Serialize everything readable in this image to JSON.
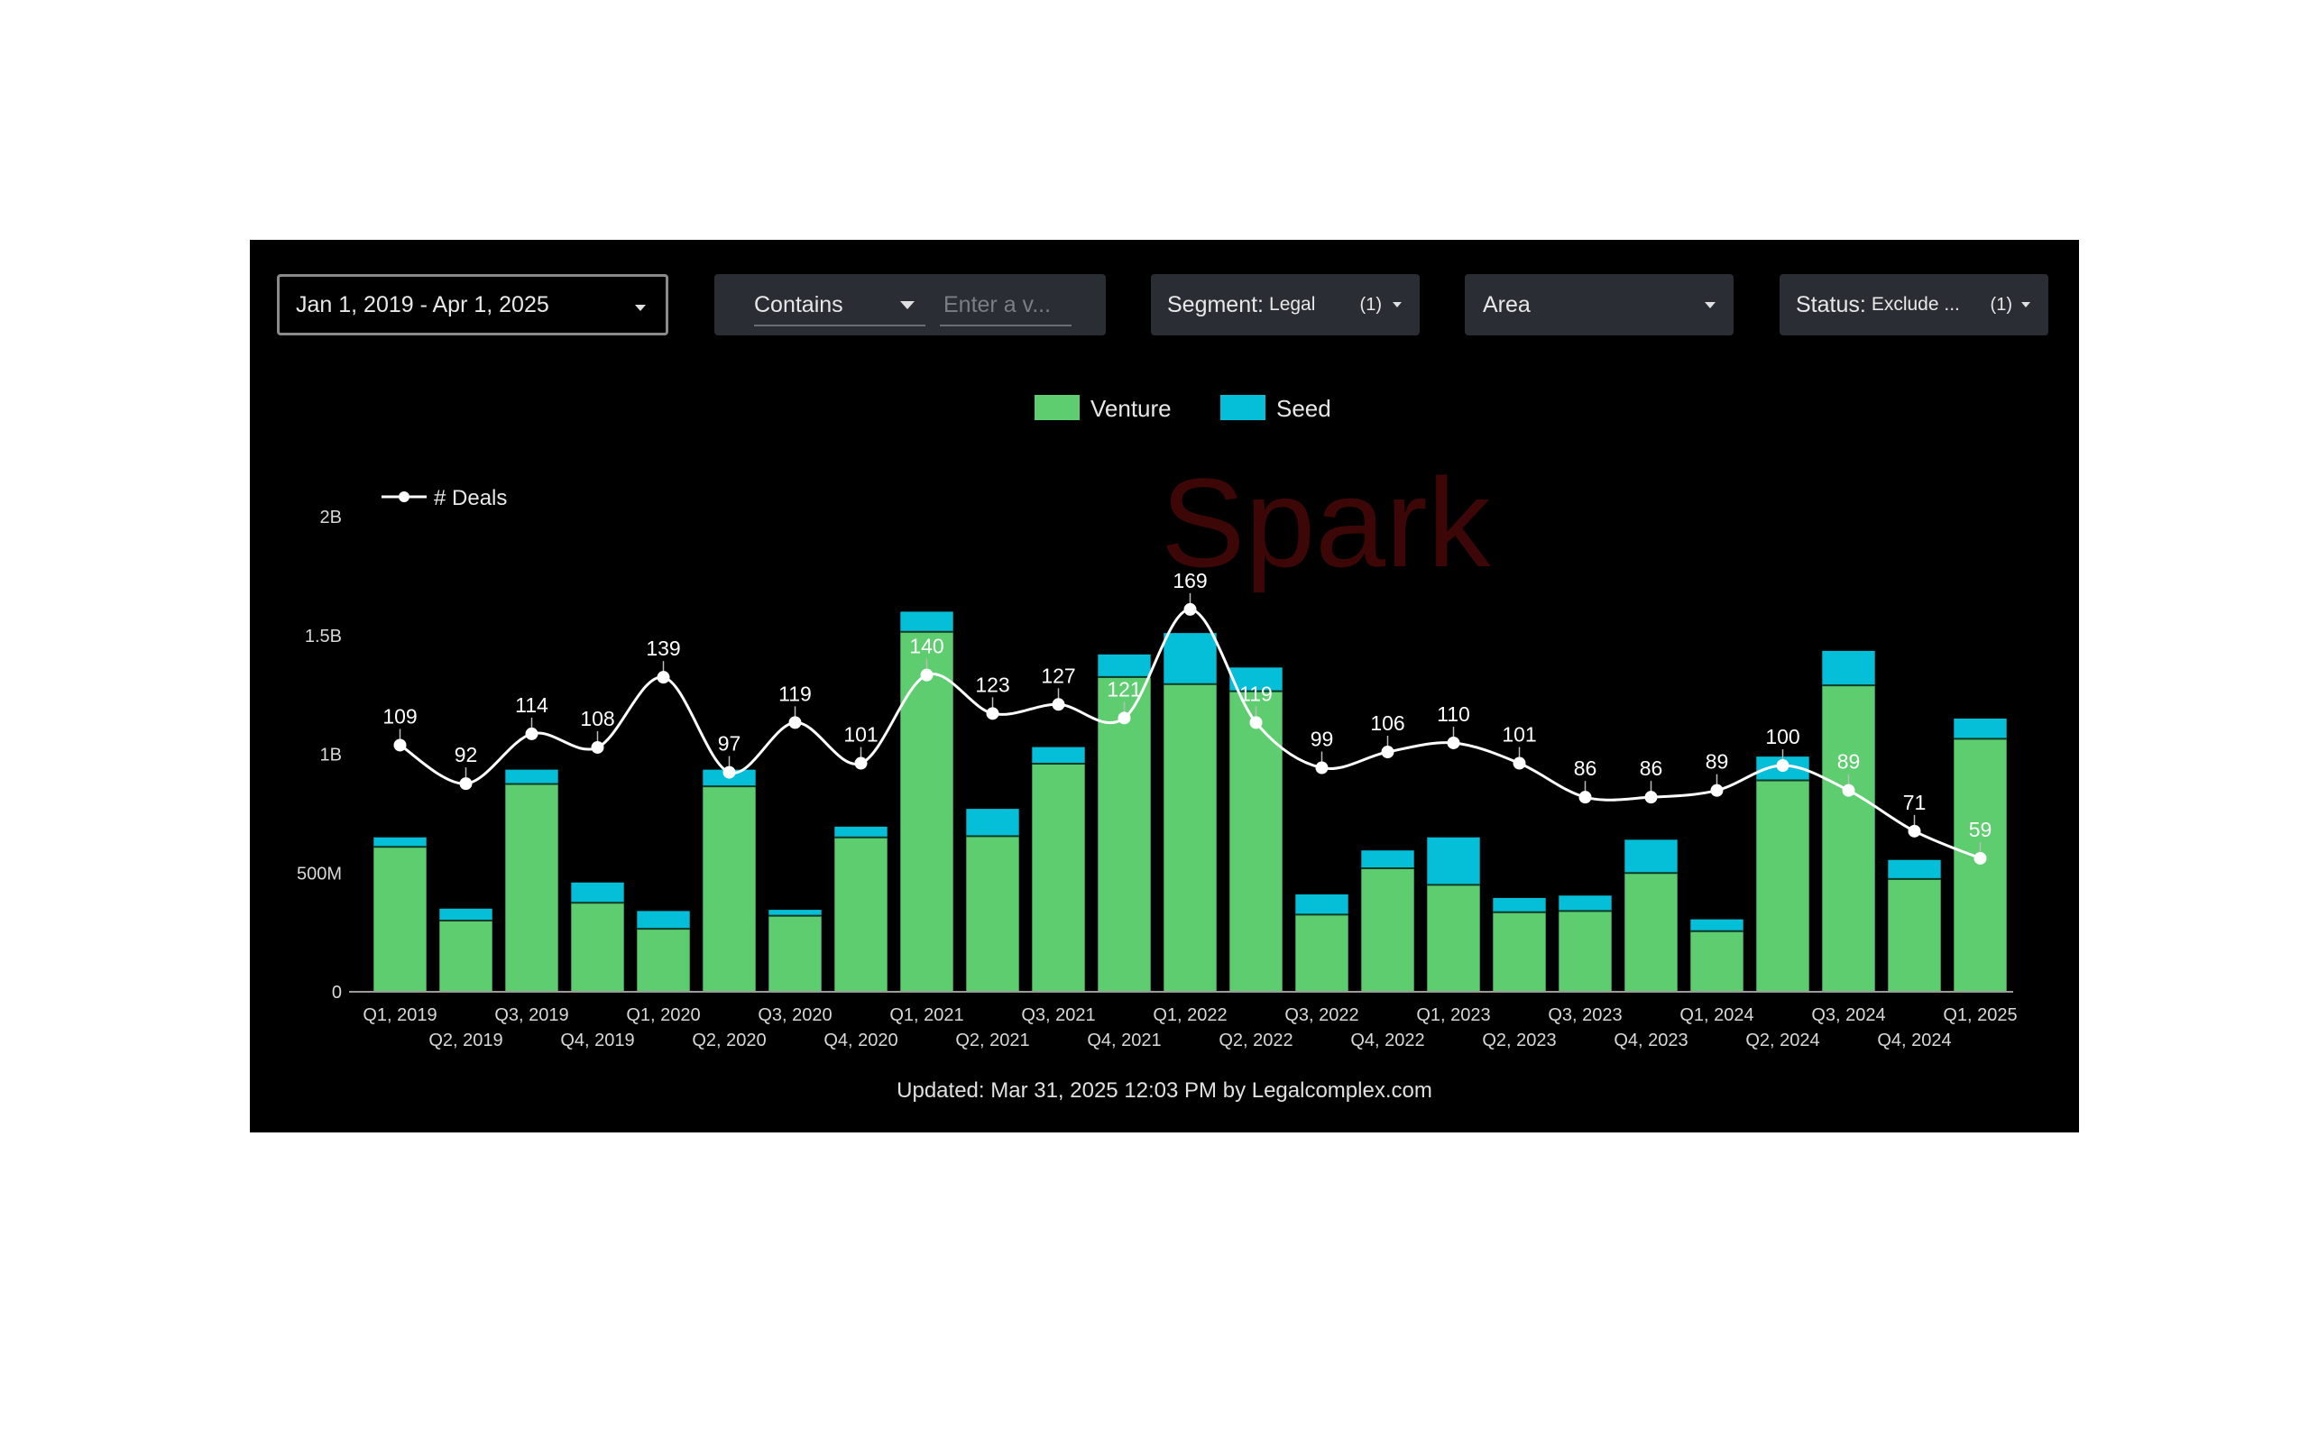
{
  "filters": {
    "date_range": "Jan 1, 2019 - Apr 1, 2025",
    "match_type": "Contains",
    "value_placeholder": "Enter a v...",
    "segment_label": "Segment:",
    "segment_value": "Legal",
    "segment_count": "(1)",
    "area_label": "Area",
    "status_label": "Status:",
    "status_value": "Exclude ...",
    "status_count": "(1)"
  },
  "watermark": "Spark",
  "footer": "Updated: Mar 31, 2025 12:03 PM by Legalcomplex.com",
  "colors": {
    "venture": "#5ecd6f",
    "seed": "#05bfd9",
    "deals_line": "#ffffff",
    "background": "#000000"
  },
  "chart_data": {
    "type": "bar",
    "stacked": true,
    "categories": [
      "Q1, 2019",
      "Q2, 2019",
      "Q3, 2019",
      "Q4, 2019",
      "Q1, 2020",
      "Q2, 2020",
      "Q3, 2020",
      "Q4, 2020",
      "Q1, 2021",
      "Q2, 2021",
      "Q3, 2021",
      "Q4, 2021",
      "Q1, 2022",
      "Q2, 2022",
      "Q3, 2022",
      "Q4, 2022",
      "Q1, 2023",
      "Q2, 2023",
      "Q3, 2023",
      "Q4, 2023",
      "Q1, 2024",
      "Q2, 2024",
      "Q3, 2024",
      "Q4, 2024",
      "Q1, 2025"
    ],
    "series": [
      {
        "name": "Venture",
        "values": [
          610,
          300,
          875,
          375,
          265,
          865,
          320,
          650,
          1515,
          655,
          960,
          1325,
          1295,
          1265,
          325,
          520,
          450,
          335,
          340,
          500,
          255,
          890,
          1290,
          475,
          1065
        ]
      },
      {
        "name": "Seed",
        "values": [
          40,
          50,
          60,
          85,
          75,
          70,
          25,
          45,
          85,
          115,
          70,
          95,
          215,
          100,
          85,
          75,
          200,
          60,
          65,
          140,
          50,
          100,
          145,
          80,
          85
        ]
      }
    ],
    "line_series": {
      "name": "# Deals",
      "values": [
        109,
        92,
        114,
        108,
        139,
        97,
        119,
        101,
        140,
        123,
        127,
        121,
        169,
        119,
        99,
        106,
        110,
        101,
        86,
        86,
        89,
        100,
        89,
        71,
        59
      ]
    },
    "value_unit": "M",
    "y_ticks": [
      "0",
      "500M",
      "1B",
      "1.5B",
      "2B"
    ],
    "ylim": [
      0,
      2000
    ],
    "deals_range": [
      0,
      210
    ],
    "legend": [
      "Venture",
      "Seed"
    ],
    "legend_position": "top-center",
    "line_legend_position": "top-left",
    "grid": false
  }
}
